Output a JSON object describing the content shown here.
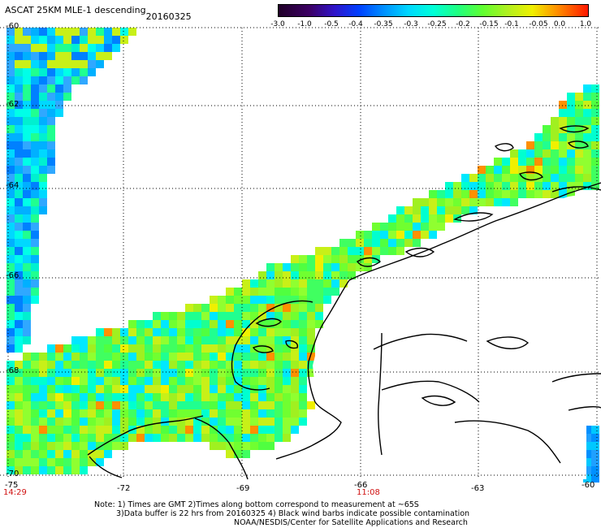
{
  "header": {
    "title": "ASCAT 25KM MLE-1 descending",
    "date": "20160325"
  },
  "colorbar": {
    "labels": [
      "-3.0",
      "-1.0",
      "-0.5",
      "-0.4",
      "-0.35",
      "-0.3",
      "-0.25",
      "-0.2",
      "-0.15",
      "-0.1",
      "-0.05",
      "0.0",
      "1.0"
    ],
    "colors": [
      "#2a0033",
      "#4a0070",
      "#2a14c8",
      "#0050ff",
      "#0096ff",
      "#00d8ff",
      "#00ffe0",
      "#30ff70",
      "#7cff20",
      "#c8f018",
      "#ffd000",
      "#ff8000",
      "#ff2000"
    ]
  },
  "map": {
    "lat_labels": [
      "-60",
      "-62",
      "-64",
      "-66",
      "-68",
      "-70"
    ],
    "lon_labels": [
      "-75",
      "-72",
      "-69",
      "-66",
      "-63",
      "-60"
    ],
    "time_labels": [
      "14:29",
      "11:08"
    ],
    "time_color": "#d01010"
  },
  "footer": {
    "line1": "Note: 1) Times are GMT 2)Times along bottom correspond to measurement at ~65S",
    "line2": "3)Data buffer is 22 hrs from 20160325 4) Black wind barbs indicate possible contamination",
    "line3": "NOAA/NESDIS/Center for Satellite Applications and Research"
  }
}
